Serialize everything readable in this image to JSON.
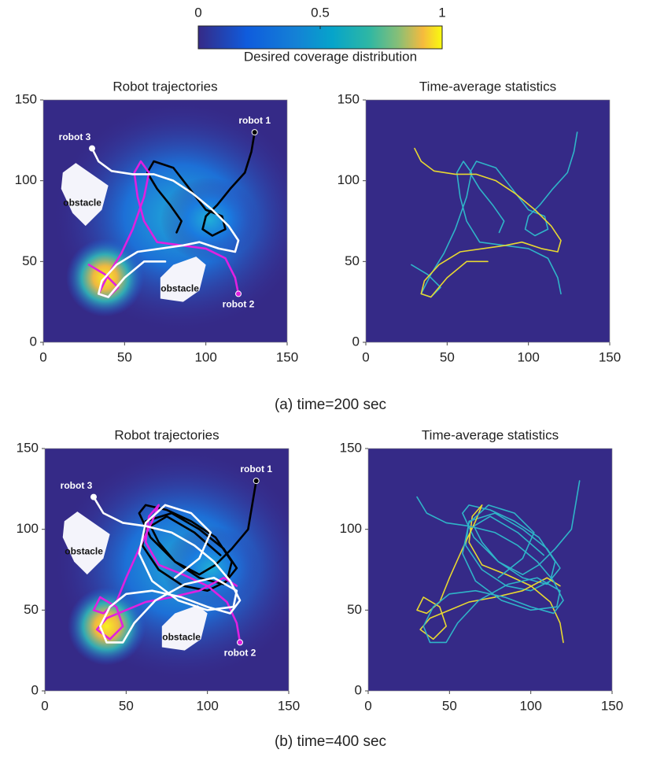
{
  "colorbar": {
    "lim": [
      0,
      1
    ],
    "ticks": [
      0,
      0.5,
      1
    ],
    "label": "Desired coverage distribution"
  },
  "captions": [
    "(a) time=200 sec",
    "(b) time=400 sec"
  ],
  "chart_data": [
    {
      "type": "trajectory",
      "title": "Robot trajectories",
      "xlim": [
        0,
        150
      ],
      "ylim": [
        0,
        150
      ],
      "xticks": [
        0,
        50,
        100,
        150
      ],
      "yticks": [
        0,
        50,
        100,
        150
      ],
      "annotations": [
        {
          "text": "obstacle",
          "x": 24,
          "y": 86
        },
        {
          "text": "obstacle",
          "x": 84,
          "y": 33
        }
      ],
      "series": [
        {
          "name": "robot 1",
          "color": "#000000",
          "x": [
            130,
            128,
            124,
            115,
            107,
            100,
            98,
            104,
            112,
            110,
            100,
            90,
            80,
            68,
            64,
            70,
            78,
            85,
            82
          ],
          "values": [
            130,
            118,
            105,
            95,
            85,
            78,
            70,
            66,
            70,
            78,
            82,
            95,
            108,
            112,
            105,
            95,
            85,
            75,
            68
          ]
        },
        {
          "name": "robot 2",
          "color": "#e020e0",
          "x": [
            120,
            118,
            112,
            100,
            85,
            70,
            62,
            58,
            56,
            60,
            65,
            62,
            55,
            48,
            40,
            34,
            40,
            46,
            38,
            28
          ],
          "values": [
            30,
            40,
            52,
            58,
            60,
            62,
            75,
            90,
            105,
            112,
            105,
            90,
            70,
            55,
            42,
            30,
            28,
            34,
            42,
            48
          ]
        },
        {
          "name": "robot 3",
          "color": "#ffffff",
          "x": [
            30,
            34,
            42,
            55,
            68,
            80,
            92,
            104,
            114,
            120,
            118,
            108,
            96,
            86,
            72,
            58,
            45,
            36,
            34,
            40,
            50,
            62,
            75
          ],
          "values": [
            120,
            112,
            106,
            104,
            104,
            100,
            92,
            82,
            72,
            63,
            56,
            58,
            62,
            60,
            58,
            56,
            48,
            38,
            30,
            28,
            40,
            50,
            50
          ]
        }
      ]
    },
    {
      "type": "statistics",
      "title": "Time-average statistics",
      "xlim": [
        0,
        150
      ],
      "ylim": [
        0,
        150
      ],
      "xticks": [
        0,
        50,
        100,
        150
      ],
      "yticks": [
        0,
        50,
        100,
        150
      ],
      "series": [
        {
          "color": "#2fb4c8",
          "x": [
            130,
            128,
            124,
            115,
            107,
            100,
            98,
            104,
            112,
            110,
            100,
            90,
            80,
            68,
            64,
            70,
            78,
            85,
            82
          ],
          "values": [
            130,
            118,
            105,
            95,
            85,
            78,
            70,
            66,
            70,
            78,
            82,
            95,
            108,
            112,
            105,
            95,
            85,
            75,
            68
          ]
        },
        {
          "color": "#2fb4c8",
          "x": [
            120,
            118,
            112,
            100,
            85,
            70,
            62,
            58,
            56,
            60,
            65,
            62,
            55,
            48,
            40,
            34,
            40,
            46,
            38,
            28
          ],
          "values": [
            30,
            40,
            52,
            58,
            60,
            62,
            75,
            90,
            105,
            112,
            105,
            90,
            70,
            55,
            42,
            30,
            28,
            34,
            42,
            48
          ]
        },
        {
          "color": "#e8d830",
          "x": [
            30,
            34,
            42,
            55,
            68,
            80,
            92,
            104,
            114,
            120,
            118,
            108,
            96,
            86,
            72,
            58,
            45,
            36,
            34,
            40,
            50,
            62,
            75
          ],
          "values": [
            120,
            112,
            106,
            104,
            104,
            100,
            92,
            82,
            72,
            63,
            56,
            58,
            62,
            60,
            58,
            56,
            48,
            38,
            30,
            28,
            40,
            50,
            50
          ]
        }
      ]
    },
    {
      "type": "trajectory",
      "title": "Robot trajectories",
      "xlim": [
        0,
        150
      ],
      "ylim": [
        0,
        150
      ],
      "xticks": [
        0,
        50,
        100,
        150
      ],
      "yticks": [
        0,
        50,
        100,
        150
      ],
      "annotations": [
        {
          "text": "obstacle",
          "x": 24,
          "y": 86
        },
        {
          "text": "obstacle",
          "x": 84,
          "y": 33
        }
      ],
      "series": [
        {
          "name": "robot 1",
          "color": "#000000",
          "x": [
            130,
            128,
            125,
            115,
            105,
            95,
            80,
            65,
            58,
            62,
            75,
            90,
            105,
            115,
            112,
            100,
            85,
            70,
            60,
            62,
            78,
            95,
            110,
            118,
            110,
            95,
            80,
            70,
            65,
            75,
            92,
            108
          ],
          "values": [
            130,
            118,
            100,
            88,
            78,
            72,
            80,
            95,
            110,
            115,
            112,
            105,
            95,
            80,
            68,
            62,
            65,
            75,
            90,
            105,
            110,
            100,
            88,
            76,
            66,
            70,
            80,
            92,
            102,
            108,
            98,
            84
          ]
        },
        {
          "name": "robot 2",
          "color": "#e020e0",
          "x": [
            120,
            118,
            112,
            100,
            85,
            70,
            62,
            64,
            70,
            66,
            58,
            50,
            44,
            36,
            30,
            34,
            44,
            48,
            40,
            32,
            38,
            50,
            62,
            78,
            95,
            110,
            118
          ],
          "values": [
            30,
            42,
            55,
            65,
            72,
            78,
            92,
            108,
            115,
            105,
            88,
            70,
            55,
            48,
            50,
            58,
            52,
            40,
            32,
            38,
            45,
            50,
            55,
            58,
            62,
            70,
            65
          ]
        },
        {
          "name": "robot 3",
          "color": "#ffffff",
          "x": [
            30,
            36,
            48,
            62,
            78,
            92,
            104,
            114,
            120,
            114,
            100,
            84,
            66,
            50,
            40,
            34,
            38,
            48,
            55,
            68,
            86,
            104,
            118,
            116,
            100,
            82,
            66,
            58,
            62,
            74,
            90,
            102,
            95,
            80
          ],
          "values": [
            120,
            110,
            104,
            102,
            98,
            90,
            80,
            68,
            56,
            48,
            52,
            58,
            62,
            60,
            52,
            40,
            30,
            30,
            42,
            56,
            66,
            70,
            62,
            52,
            50,
            56,
            68,
            85,
            104,
            115,
            110,
            98,
            82,
            70
          ]
        }
      ]
    },
    {
      "type": "statistics",
      "title": "Time-average statistics",
      "xlim": [
        0,
        150
      ],
      "ylim": [
        0,
        150
      ],
      "xticks": [
        0,
        50,
        100,
        150
      ],
      "yticks": [
        0,
        50,
        100,
        150
      ],
      "series": [
        {
          "color": "#2fb4c8",
          "x": [
            130,
            128,
            125,
            115,
            105,
            95,
            80,
            65,
            58,
            62,
            75,
            90,
            105,
            115,
            112,
            100,
            85,
            70,
            60,
            62,
            78,
            95,
            110,
            118,
            110,
            95,
            80,
            70,
            65,
            75,
            92,
            108
          ],
          "values": [
            130,
            118,
            100,
            88,
            78,
            72,
            80,
            95,
            110,
            115,
            112,
            105,
            95,
            80,
            68,
            62,
            65,
            75,
            90,
            105,
            110,
            100,
            88,
            76,
            66,
            70,
            80,
            92,
            102,
            108,
            98,
            84
          ]
        },
        {
          "color": "#e8d830",
          "x": [
            120,
            118,
            112,
            100,
            85,
            70,
            62,
            64,
            70,
            66,
            58,
            50,
            44,
            36,
            30,
            34,
            44,
            48,
            40,
            32,
            38,
            50,
            62,
            78,
            95,
            110,
            118
          ],
          "values": [
            30,
            42,
            55,
            65,
            72,
            78,
            92,
            108,
            115,
            105,
            88,
            70,
            55,
            48,
            50,
            58,
            52,
            40,
            32,
            38,
            45,
            50,
            55,
            58,
            62,
            70,
            65
          ]
        },
        {
          "color": "#2fb4c8",
          "x": [
            30,
            36,
            48,
            62,
            78,
            92,
            104,
            114,
            120,
            114,
            100,
            84,
            66,
            50,
            40,
            34,
            38,
            48,
            55,
            68,
            86,
            104,
            118,
            116,
            100,
            82,
            66,
            58,
            62,
            74,
            90,
            102,
            95,
            80
          ],
          "values": [
            120,
            110,
            104,
            102,
            98,
            90,
            80,
            68,
            56,
            48,
            52,
            58,
            62,
            60,
            52,
            40,
            30,
            30,
            42,
            56,
            66,
            70,
            62,
            52,
            50,
            56,
            68,
            85,
            104,
            115,
            110,
            98,
            82,
            70
          ]
        }
      ]
    }
  ]
}
